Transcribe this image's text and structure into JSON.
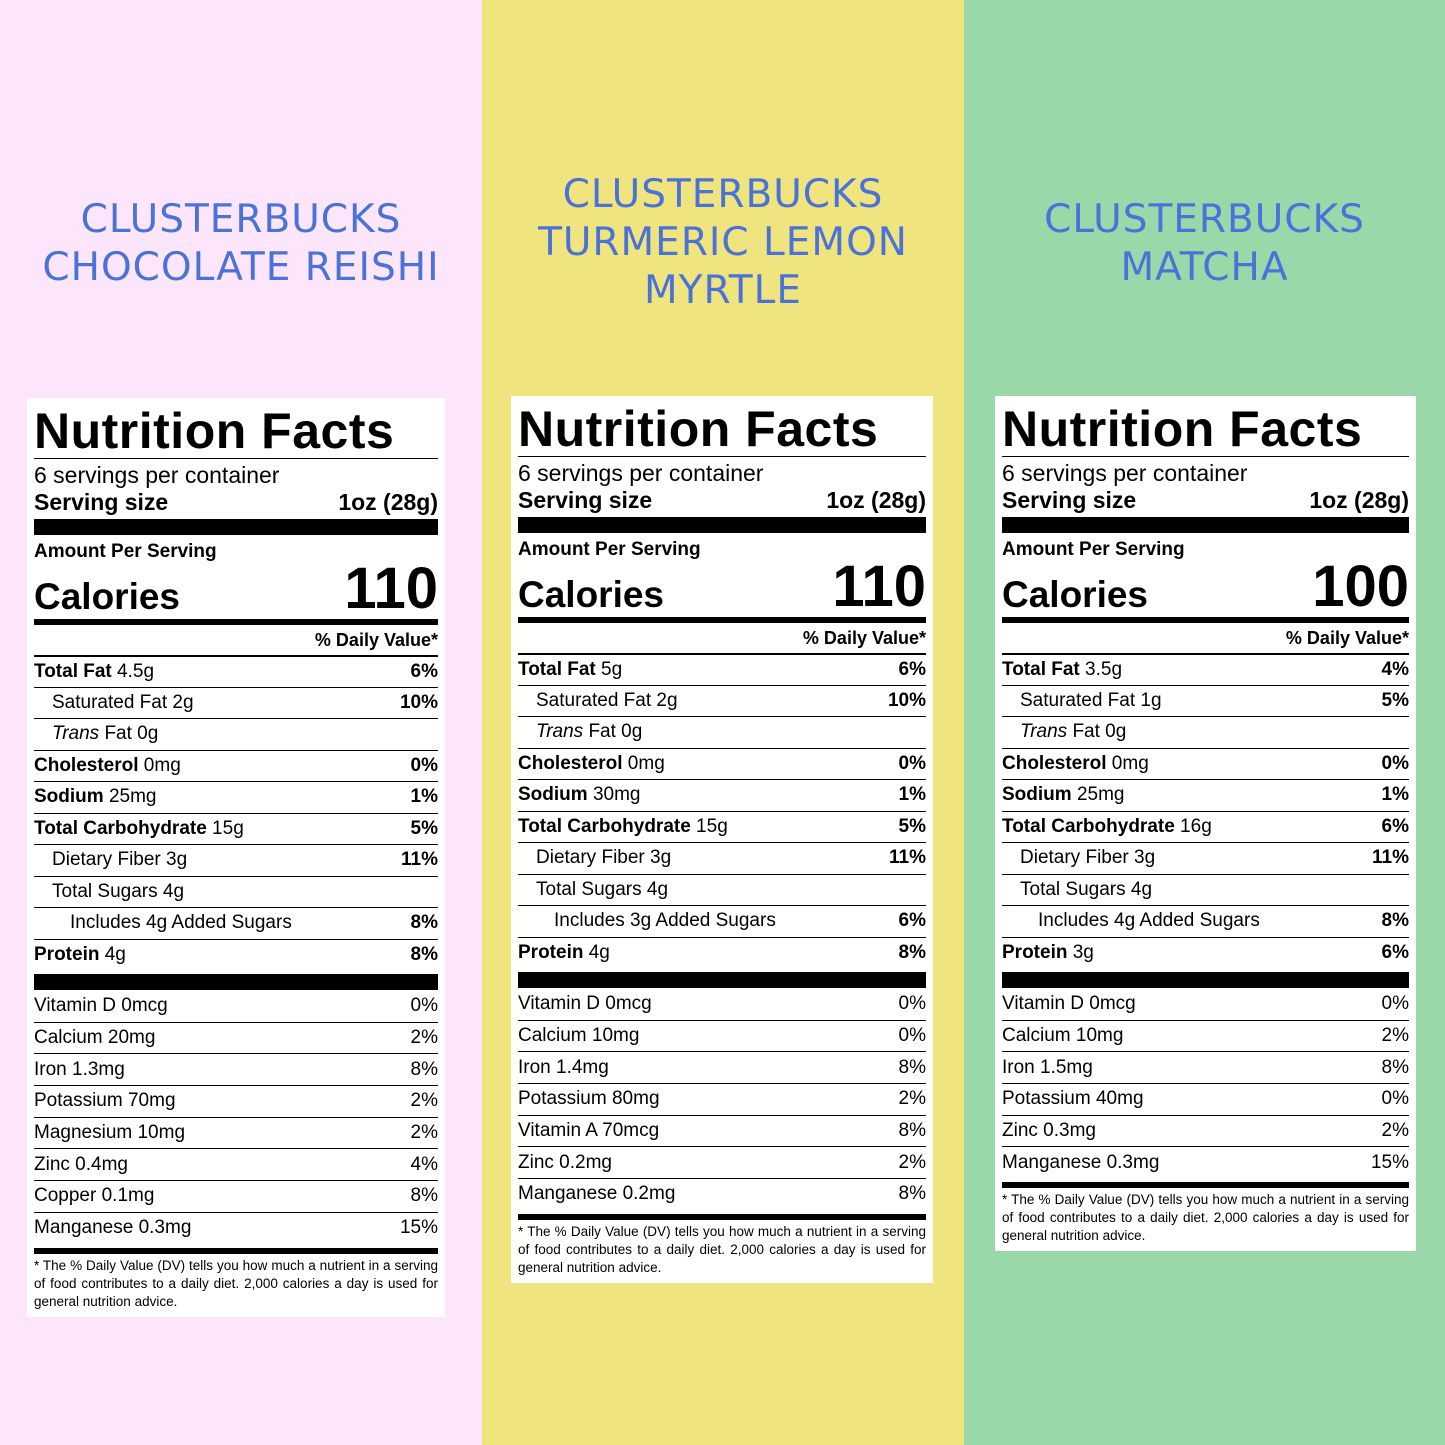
{
  "panels": [
    {
      "bg": "#fde6fb",
      "title": [
        "CLUSTERBUCKS",
        "CHOCOLATE REISHI"
      ],
      "heading": "Nutrition Facts",
      "servings": "6 servings per container",
      "serving_label": "Serving size",
      "serving_value": "1oz (28g)",
      "amount": "Amount Per Serving",
      "calories_label": "Calories",
      "calories": "110",
      "dv_header": "% Daily Value*",
      "nutrients": [
        {
          "bold": "Total Fat",
          "amt": " 4.5g",
          "pct": "6%"
        },
        {
          "name": "Saturated Fat",
          "amt": " 2g",
          "pct": "10%",
          "indent": 1
        },
        {
          "italic": "Trans",
          "amt": " Fat 0g",
          "pct": "",
          "indent": 1
        },
        {
          "bold": "Cholesterol",
          "amt": " 0mg",
          "pct": "0%"
        },
        {
          "bold": "Sodium",
          "amt": " 25mg",
          "pct": "1%"
        },
        {
          "bold": "Total Carbohydrate",
          "amt": " 15g",
          "pct": "5%"
        },
        {
          "name": "Dietary Fiber",
          "amt": " 3g",
          "pct": "11%",
          "indent": 1
        },
        {
          "name": "Total Sugars",
          "amt": " 4g",
          "pct": "",
          "indent": 1
        },
        {
          "name": "Includes 4g Added Sugars",
          "amt": "",
          "pct": "8%",
          "indent": 2
        },
        {
          "bold": "Protein",
          "amt": " 4g",
          "pct": "8%"
        }
      ],
      "vitamins": [
        {
          "name": "Vitamin D 0mcg",
          "pct": "0%"
        },
        {
          "name": "Calcium 20mg",
          "pct": "2%"
        },
        {
          "name": "Iron 1.3mg",
          "pct": "8%"
        },
        {
          "name": "Potassium 70mg",
          "pct": "2%"
        },
        {
          "name": "Magnesium 10mg",
          "pct": "2%"
        },
        {
          "name": "Zinc 0.4mg",
          "pct": "4%"
        },
        {
          "name": "Copper 0.1mg",
          "pct": "8%"
        },
        {
          "name": "Manganese 0.3mg",
          "pct": "15%"
        }
      ],
      "footnote": "* The % Daily Value (DV) tells you how much a nutrient in a serving of food contributes to a daily diet. 2,000 calories a day is used for general nutrition advice."
    },
    {
      "bg": "#f0e47e",
      "title": [
        "CLUSTERBUCKS",
        "TURMERIC LEMON",
        "MYRTLE"
      ],
      "heading": "Nutrition Facts",
      "servings": "6 servings per container",
      "serving_label": "Serving size",
      "serving_value": "1oz (28g)",
      "amount": "Amount Per Serving",
      "calories_label": "Calories",
      "calories": "110",
      "dv_header": "% Daily Value*",
      "nutrients": [
        {
          "bold": "Total Fat",
          "amt": " 5g",
          "pct": "6%"
        },
        {
          "name": "Saturated Fat",
          "amt": " 2g",
          "pct": "10%",
          "indent": 1
        },
        {
          "italic": "Trans",
          "amt": " Fat 0g",
          "pct": "",
          "indent": 1
        },
        {
          "bold": "Cholesterol",
          "amt": " 0mg",
          "pct": "0%"
        },
        {
          "bold": "Sodium",
          "amt": " 30mg",
          "pct": "1%"
        },
        {
          "bold": "Total Carbohydrate",
          "amt": " 15g",
          "pct": "5%"
        },
        {
          "name": "Dietary Fiber",
          "amt": " 3g",
          "pct": "11%",
          "indent": 1
        },
        {
          "name": "Total Sugars",
          "amt": " 4g",
          "pct": "",
          "indent": 1
        },
        {
          "name": "Includes 3g Added Sugars",
          "amt": "",
          "pct": "6%",
          "indent": 2
        },
        {
          "bold": "Protein",
          "amt": " 4g",
          "pct": "8%"
        }
      ],
      "vitamins": [
        {
          "name": "Vitamin D 0mcg",
          "pct": "0%"
        },
        {
          "name": "Calcium 10mg",
          "pct": "0%"
        },
        {
          "name": "Iron 1.4mg",
          "pct": "8%"
        },
        {
          "name": "Potassium 80mg",
          "pct": "2%"
        },
        {
          "name": "Vitamin A 70mcg",
          "pct": "8%"
        },
        {
          "name": "Zinc 0.2mg",
          "pct": "2%"
        },
        {
          "name": "Manganese 0.2mg",
          "pct": "8%"
        }
      ],
      "footnote": "* The % Daily Value (DV) tells you how much a nutrient in a serving of food contributes to a daily diet. 2,000 calories a day is used for general nutrition advice."
    },
    {
      "bg": "#9ad8a9",
      "title": [
        "CLUSTERBUCKS",
        "MATCHA"
      ],
      "heading": "Nutrition Facts",
      "servings": "6 servings per container",
      "serving_label": "Serving size",
      "serving_value": "1oz (28g)",
      "amount": "Amount Per Serving",
      "calories_label": "Calories",
      "calories": "100",
      "dv_header": "% Daily Value*",
      "nutrients": [
        {
          "bold": "Total Fat",
          "amt": " 3.5g",
          "pct": "4%"
        },
        {
          "name": "Saturated Fat",
          "amt": " 1g",
          "pct": "5%",
          "indent": 1
        },
        {
          "italic": "Trans",
          "amt": " Fat 0g",
          "pct": "",
          "indent": 1
        },
        {
          "bold": "Cholesterol",
          "amt": " 0mg",
          "pct": "0%"
        },
        {
          "bold": "Sodium",
          "amt": " 25mg",
          "pct": "1%"
        },
        {
          "bold": "Total Carbohydrate",
          "amt": " 16g",
          "pct": "6%"
        },
        {
          "name": "Dietary Fiber",
          "amt": " 3g",
          "pct": "11%",
          "indent": 1
        },
        {
          "name": "Total Sugars",
          "amt": " 4g",
          "pct": "",
          "indent": 1
        },
        {
          "name": "Includes 4g Added Sugars",
          "amt": "",
          "pct": "8%",
          "indent": 2
        },
        {
          "bold": "Protein",
          "amt": " 3g",
          "pct": "6%"
        }
      ],
      "vitamins": [
        {
          "name": "Vitamin D 0mcg",
          "pct": "0%"
        },
        {
          "name": "Calcium 10mg",
          "pct": "2%"
        },
        {
          "name": "Iron 1.5mg",
          "pct": "8%"
        },
        {
          "name": "Potassium 40mg",
          "pct": "0%"
        },
        {
          "name": "Zinc 0.3mg",
          "pct": "2%"
        },
        {
          "name": "Manganese 0.3mg",
          "pct": "15%"
        }
      ],
      "footnote": "* The % Daily Value (DV) tells you how much a nutrient in a serving of food contributes to a daily diet. 2,000 calories a day is used for general nutrition advice."
    }
  ]
}
